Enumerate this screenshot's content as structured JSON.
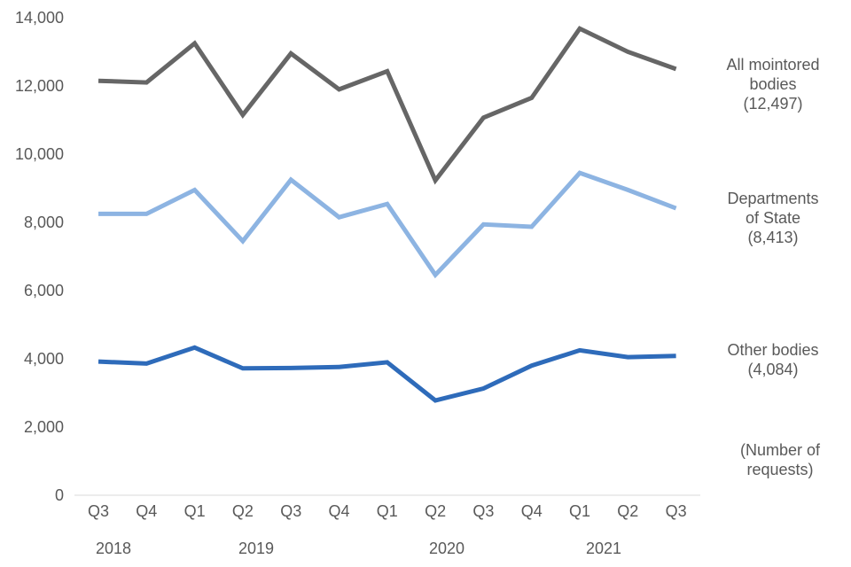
{
  "chart_data": {
    "type": "line",
    "ylim": [
      0,
      14000
    ],
    "y_ticks": [
      "0",
      "2,000",
      "4,000",
      "6,000",
      "8,000",
      "10,000",
      "12,000",
      "14,000"
    ],
    "categories": [
      "Q3",
      "Q4",
      "Q1",
      "Q2",
      "Q3",
      "Q4",
      "Q1",
      "Q2",
      "Q3",
      "Q4",
      "Q1",
      "Q2",
      "Q3"
    ],
    "years": [
      "2018",
      "2019",
      "2020",
      "2021"
    ],
    "grid": false,
    "series": [
      {
        "name": "All mointored bodies",
        "label_lines": [
          "All mointored",
          "bodies",
          "(12,497)"
        ],
        "color": "#666666",
        "values": [
          12150,
          12100,
          13250,
          11150,
          12950,
          11900,
          12430,
          9230,
          11070,
          11650,
          13680,
          13000,
          12497
        ]
      },
      {
        "name": "Departments of State",
        "label_lines": [
          "Departments",
          "of State",
          "(8,413)"
        ],
        "color": "#8db4e2",
        "values": [
          8250,
          8250,
          8950,
          7450,
          9250,
          8150,
          8540,
          6460,
          7940,
          7870,
          9450,
          8950,
          8413
        ]
      },
      {
        "name": "Other bodies",
        "label_lines": [
          "Other bodies",
          "(4,084)"
        ],
        "color": "#2e6bba",
        "values": [
          3920,
          3860,
          4330,
          3720,
          3730,
          3760,
          3900,
          2780,
          3130,
          3800,
          4250,
          4050,
          4084
        ]
      }
    ],
    "unit_note_lines": [
      "(Number of",
      "requests)"
    ]
  }
}
